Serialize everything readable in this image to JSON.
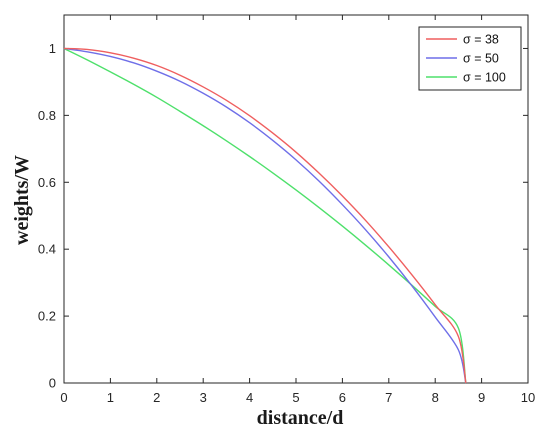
{
  "chart_data": {
    "type": "line",
    "title": "",
    "xlabel": "distance/d",
    "ylabel": "weights/W",
    "xlim": [
      0,
      10
    ],
    "ylim": [
      0,
      1.1
    ],
    "xticks": [
      0,
      1,
      2,
      3,
      4,
      5,
      6,
      7,
      8,
      9,
      10
    ],
    "yticks": [
      0,
      0.2,
      0.4,
      0.6,
      0.8,
      1
    ],
    "ytick_labels": [
      "0",
      "0.2",
      "0.4",
      "0.6",
      "0.8",
      "1"
    ],
    "grid": false,
    "legend_position": "top-right",
    "series": [
      {
        "name": "σ = 38",
        "color": "#ef5f5f",
        "x": [
          0,
          0.5,
          1,
          1.5,
          2,
          2.5,
          3,
          3.5,
          4,
          4.5,
          5,
          5.5,
          6,
          6.5,
          7,
          7.5,
          8,
          8.5,
          8.66
        ],
        "y": [
          1.0,
          0.997,
          0.987,
          0.971,
          0.949,
          0.92,
          0.885,
          0.845,
          0.799,
          0.747,
          0.69,
          0.627,
          0.559,
          0.486,
          0.407,
          0.323,
          0.234,
          0.139,
          0.0
        ]
      },
      {
        "name": "σ = 50",
        "color": "#6f6fe8",
        "x": [
          0,
          0.5,
          1,
          1.5,
          2,
          2.5,
          3,
          3.5,
          4,
          4.5,
          5,
          5.5,
          6,
          6.5,
          7,
          7.5,
          8,
          8.5,
          8.66
        ],
        "y": [
          1.0,
          0.99,
          0.976,
          0.957,
          0.932,
          0.902,
          0.866,
          0.825,
          0.778,
          0.725,
          0.667,
          0.603,
          0.533,
          0.458,
          0.377,
          0.29,
          0.197,
          0.099,
          0.0
        ]
      },
      {
        "name": "σ = 100",
        "color": "#4ee06b",
        "x": [
          0,
          0.5,
          1,
          1.5,
          2,
          2.5,
          3,
          3.5,
          4,
          4.5,
          5,
          5.5,
          6,
          6.5,
          7,
          7.5,
          8,
          8.5,
          8.66
        ],
        "y": [
          1.0,
          0.966,
          0.93,
          0.893,
          0.854,
          0.812,
          0.769,
          0.724,
          0.677,
          0.628,
          0.577,
          0.524,
          0.469,
          0.412,
          0.353,
          0.292,
          0.229,
          0.164,
          0.0
        ]
      }
    ]
  }
}
